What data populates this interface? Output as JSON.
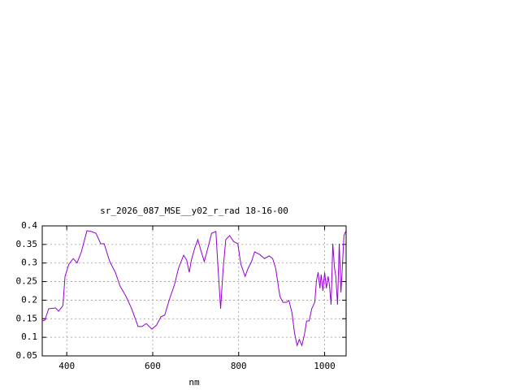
{
  "chart_data": {
    "type": "line",
    "title": "sr_2026_087_MSE__y02_r_rad 18-16-00",
    "x_label": "nm",
    "xlim": [
      343,
      1050
    ],
    "ylim": [
      0.05,
      0.4
    ],
    "xticks": [
      400,
      600,
      800,
      1000
    ],
    "yticks": [
      0.05,
      0.1,
      0.15,
      0.2,
      0.25,
      0.3,
      0.35,
      0.4
    ],
    "grid": true,
    "series": [
      {
        "color": "#9400d3",
        "x": [
          343,
          349,
          358,
          374,
          381,
          391,
          396,
          405,
          415,
          424,
          434,
          447,
          457,
          468,
          479,
          487,
          500,
          513,
          524,
          538,
          551,
          566,
          575,
          585,
          598,
          609,
          619,
          628,
          638,
          651,
          660,
          672,
          679,
          685,
          690,
          698,
          705,
          713,
          720,
          728,
          737,
          747,
          752,
          758,
          764,
          770,
          779,
          788,
          798,
          805,
          815,
          822,
          830,
          837,
          849,
          860,
          871,
          879,
          886,
          896,
          903,
          911,
          917,
          924,
          930,
          936,
          941,
          947,
          953,
          958,
          964,
          970,
          977,
          981,
          985,
          989,
          992,
          996,
          1000,
          1004,
          1008,
          1011,
          1015,
          1019,
          1023,
          1026,
          1030,
          1034,
          1038,
          1041,
          1045,
          1049
        ],
        "values": [
          0.144,
          0.146,
          0.177,
          0.179,
          0.17,
          0.185,
          0.264,
          0.297,
          0.312,
          0.3,
          0.33,
          0.387,
          0.385,
          0.38,
          0.352,
          0.352,
          0.304,
          0.275,
          0.238,
          0.21,
          0.177,
          0.129,
          0.129,
          0.137,
          0.122,
          0.133,
          0.155,
          0.16,
          0.199,
          0.243,
          0.286,
          0.321,
          0.308,
          0.275,
          0.308,
          0.341,
          0.363,
          0.33,
          0.304,
          0.339,
          0.38,
          0.385,
          0.286,
          0.177,
          0.286,
          0.363,
          0.374,
          0.358,
          0.352,
          0.297,
          0.264,
          0.286,
          0.304,
          0.33,
          0.323,
          0.312,
          0.319,
          0.312,
          0.286,
          0.21,
          0.194,
          0.194,
          0.199,
          0.166,
          0.111,
          0.078,
          0.094,
          0.078,
          0.107,
          0.144,
          0.144,
          0.177,
          0.194,
          0.253,
          0.275,
          0.232,
          0.269,
          0.225,
          0.275,
          0.232,
          0.264,
          0.243,
          0.188,
          0.352,
          0.286,
          0.264,
          0.188,
          0.352,
          0.221,
          0.286,
          0.374,
          0.385
        ]
      }
    ]
  }
}
